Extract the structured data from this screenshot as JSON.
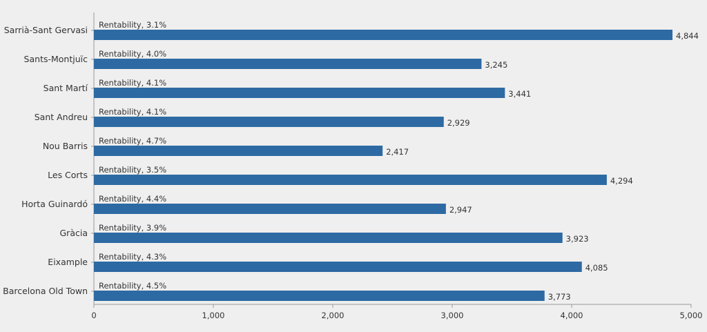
{
  "chart_data": {
    "type": "bar",
    "orientation": "horizontal",
    "categories": [
      "Sarrià-Sant Gervasi",
      "Sants-Montjuïc",
      "Sant Martí",
      "Sant Andreu",
      "Nou Barris",
      "Les Corts",
      "Horta Guinardó",
      "Gràcia",
      "Eixample",
      "Barcelona Old Town"
    ],
    "values": [
      4844,
      3245,
      3441,
      2929,
      2417,
      4294,
      2947,
      3923,
      4085,
      3773
    ],
    "value_labels": [
      "4,844",
      "3,245",
      "3,441",
      "2,929",
      "2,417",
      "4,294",
      "2,947",
      "3,923",
      "4,085",
      "3,773"
    ],
    "annotations": [
      "Rentability, 3.1%",
      "Rentability, 4.0%",
      "Rentability, 4.1%",
      "Rentability, 4.1%",
      "Rentability, 4.7%",
      "Rentability, 3.5%",
      "Rentability, 4.4%",
      "Rentability, 3.9%",
      "Rentability, 4.3%",
      "Rentability, 4.5%"
    ],
    "xlim": [
      0,
      5000
    ],
    "x_ticks": [
      0,
      1000,
      2000,
      3000,
      4000,
      5000
    ],
    "x_tick_labels": [
      "0",
      "1,000",
      "2,000",
      "3,000",
      "4,000",
      "5,000"
    ],
    "grid": false,
    "colors": {
      "bar": "#2d6aa3",
      "axis": "#9a9a9a",
      "background": "#efefef",
      "text": "#333333"
    }
  }
}
